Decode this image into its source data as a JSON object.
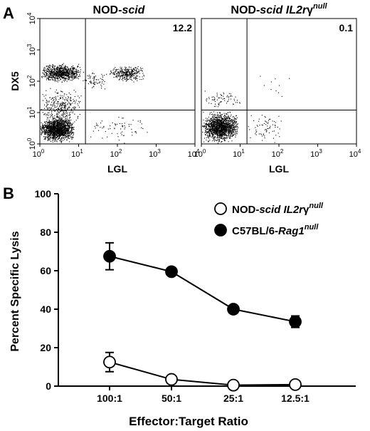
{
  "chart_data": [
    {
      "type": "scatter",
      "panel_label": "A",
      "title_parts": [
        {
          "text": "NOD-",
          "italic": false
        },
        {
          "text": "scid",
          "italic": true
        }
      ],
      "xlabel": "LGL",
      "ylabel": "DX5",
      "log_scale": true,
      "xlim": [
        1,
        10000
      ],
      "ylim": [
        1,
        10000
      ],
      "ticks": [
        {
          "base": "10",
          "exp": "0",
          "value": 1
        },
        {
          "base": "10",
          "exp": "1",
          "value": 10
        },
        {
          "base": "10",
          "exp": "2",
          "value": 100
        },
        {
          "base": "10",
          "exp": "3",
          "value": 1000
        },
        {
          "base": "10",
          "exp": "4",
          "value": 10000
        }
      ],
      "gate_x": 15,
      "gate_y": 12,
      "quadrant_value": "12.2",
      "populations": [
        {
          "x_range": [
            1,
            8
          ],
          "y_range": [
            1,
            9
          ],
          "density": "very high"
        },
        {
          "x_range": [
            1,
            12
          ],
          "y_range": [
            3,
            80
          ],
          "density": "medium"
        },
        {
          "x_range": [
            1,
            12
          ],
          "y_range": [
            90,
            400
          ],
          "density": "high"
        },
        {
          "x_range": [
            60,
            500
          ],
          "y_range": [
            90,
            350
          ],
          "density": "medium"
        },
        {
          "x_range": [
            15,
            800
          ],
          "y_range": [
            1,
            12
          ],
          "density": "low"
        },
        {
          "x_range": [
            12,
            60
          ],
          "y_range": [
            40,
            300
          ],
          "density": "low"
        }
      ]
    },
    {
      "type": "scatter",
      "panel_label": "",
      "title_parts": [
        {
          "text": "NOD-",
          "italic": false
        },
        {
          "text": "scid IL2r",
          "italic": true
        },
        {
          "text": "γ",
          "italic": false
        },
        {
          "text": "null",
          "italic": true,
          "superscript": true
        }
      ],
      "xlabel": "LGL",
      "ylabel": "",
      "log_scale": true,
      "xlim": [
        1,
        10000
      ],
      "ylim": [
        1,
        10000
      ],
      "ticks": [
        {
          "base": "10",
          "exp": "0",
          "value": 1
        },
        {
          "base": "10",
          "exp": "1",
          "value": 10
        },
        {
          "base": "10",
          "exp": "2",
          "value": 100
        },
        {
          "base": "10",
          "exp": "3",
          "value": 1000
        },
        {
          "base": "10",
          "exp": "4",
          "value": 10000
        }
      ],
      "gate_x": 15,
      "gate_y": 12,
      "quadrant_value": "0.1",
      "populations": [
        {
          "x_range": [
            1,
            9
          ],
          "y_range": [
            1,
            12
          ],
          "density": "very high"
        },
        {
          "x_range": [
            1,
            12
          ],
          "y_range": [
            12,
            60
          ],
          "density": "low"
        },
        {
          "x_range": [
            15,
            120
          ],
          "y_range": [
            1,
            12
          ],
          "density": "low"
        },
        {
          "x_range": [
            30,
            300
          ],
          "y_range": [
            20,
            300
          ],
          "density": "very low"
        }
      ]
    },
    {
      "type": "line",
      "panel_label": "B",
      "categories": [
        "100:1",
        "50:1",
        "25:1",
        "12.5:1"
      ],
      "xlabel": "Effector:Target Ratio",
      "ylabel": "Percent Specific Lysis",
      "ylim": [
        0,
        100
      ],
      "yticks": [
        "0",
        "20",
        "40",
        "60",
        "80",
        "100"
      ],
      "legend_position": "top-right",
      "series": [
        {
          "name_parts": [
            {
              "text": "NOD-",
              "italic": false
            },
            {
              "text": "scid IL2r",
              "italic": true
            },
            {
              "text": "γ",
              "italic": false
            },
            {
              "text": "null",
              "italic": true,
              "superscript": true
            }
          ],
          "marker": "open-circle",
          "values": [
            12.5,
            3.5,
            0.5,
            0.8
          ],
          "errors": [
            5,
            1.5,
            0.8,
            1.0
          ]
        },
        {
          "name_parts": [
            {
              "text": "C57BL/6-",
              "italic": false
            },
            {
              "text": "Rag1",
              "italic": true
            },
            {
              "text": "null",
              "italic": true,
              "superscript": true
            }
          ],
          "marker": "filled-circle",
          "values": [
            67.5,
            59.5,
            40,
            33.5
          ],
          "errors": [
            7,
            1.2,
            1.2,
            3
          ]
        }
      ]
    }
  ]
}
